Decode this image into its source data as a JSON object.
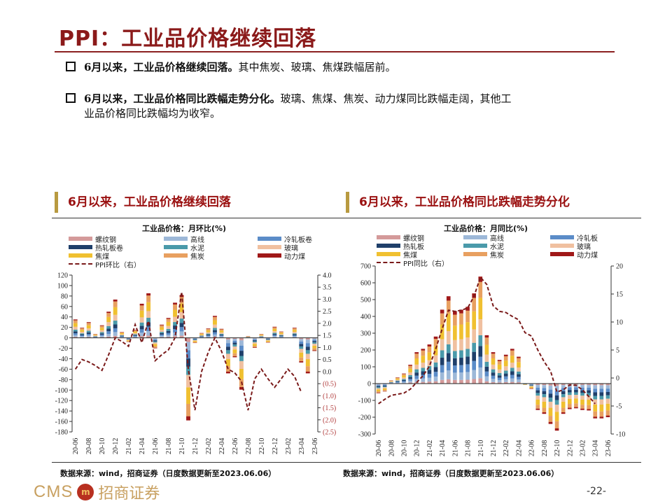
{
  "title": "PPI：工业品价格继续回落",
  "bullets": [
    {
      "bold": "6月以来，工业品价格继续回落。",
      "text": "其中焦炭、玻璃、焦煤跌幅居前。"
    },
    {
      "bold": "6月以来，工业品价格同比跌幅走势分化。",
      "text": "玻璃、焦煤、焦炭、动力煤同比跌幅走阔，其他工",
      "text2": "业品价格同比跌幅均为收窄。"
    }
  ],
  "sections": [
    "6月以来，工业品价格继续回落",
    "6月以来，工业品价格同比跌幅走势分化"
  ],
  "sources": [
    "数据来源：wind，招商证券（日度数据更新至2023.06.06）",
    "数据来源：wind，招商证券（日度数据更新至2023.06.06）"
  ],
  "logo": {
    "latin": "CMS",
    "seal": "招",
    "cn": "招商证券"
  },
  "page_number": "-22-",
  "chart_data": [
    {
      "type": "bar",
      "stacked": true,
      "title": "工业品价格：月环比(%)",
      "categories": [
        "20-06",
        "20-07",
        "20-08",
        "20-09",
        "20-10",
        "20-11",
        "20-12",
        "21-01",
        "21-02",
        "21-03",
        "21-04",
        "21-05",
        "21-06",
        "21-07",
        "21-08",
        "21-09",
        "21-10",
        "21-11",
        "21-12",
        "22-01",
        "22-02",
        "22-03",
        "22-04",
        "22-05",
        "22-06",
        "22-07",
        "22-08",
        "22-09",
        "22-10",
        "22-11",
        "22-12",
        "23-01",
        "23-02",
        "23-03",
        "23-04",
        "23-05",
        "23-06"
      ],
      "y_left": {
        "range": [
          -180,
          120
        ],
        "ticks": [
          120,
          100,
          80,
          60,
          40,
          20,
          0,
          -20,
          -40,
          -60,
          -80,
          -100,
          -120,
          -140,
          -160,
          -180
        ],
        "tick_labels": [
          "120",
          "100",
          "80",
          "60",
          "40",
          "20",
          "0",
          "-20",
          "-40",
          "-60",
          "-80",
          "-100",
          "-120",
          "-140",
          "-160",
          "-180"
        ]
      },
      "y_right": {
        "range": [
          -2.5,
          4.0
        ],
        "ticks": [
          4,
          3.5,
          3,
          2.5,
          2,
          1.5,
          1,
          0.5,
          0,
          -0.5,
          -1,
          -1.5,
          -2,
          -2.5
        ],
        "tick_labels": [
          "4.0",
          "3.5",
          "3.0",
          "2.5",
          "2.0",
          "1.5",
          "1.0",
          "0.5",
          "0.0",
          "(0.5)",
          "(1.0)",
          "(1.5)",
          "(2.0)",
          "(2.5)"
        ],
        "negative_label_color": "#b03a3a"
      },
      "series": [
        {
          "name": "螺纹钢",
          "color": "#d49a9a",
          "values": [
            1.8,
            1.0,
            1.5,
            0.4,
            1.2,
            2.5,
            3.7,
            0.6,
            -0.4,
            0.8,
            3.3,
            4.3,
            -1,
            1.3,
            1.9,
            3.4,
            4.1,
            -7.9,
            -0.5,
            0.5,
            0.9,
            2.1,
            0.9,
            -3.4,
            -1.9,
            -5,
            0.2,
            -1,
            0.4,
            -0.5,
            1.1,
            0.6,
            0,
            1,
            -2.4,
            -3.4,
            -1.3
          ]
        },
        {
          "name": "高线",
          "color": "#9db8d8",
          "values": [
            3.5,
            1.9,
            3,
            0.7,
            2.4,
            5,
            7.3,
            1.1,
            -0.8,
            1.5,
            6.5,
            8.5,
            -2,
            2.5,
            3.8,
            6.7,
            8.2,
            -15.8,
            -1,
            0.9,
            1.8,
            4.2,
            1.7,
            -6.8,
            -3.7,
            -9.9,
            0.3,
            -1.9,
            0.7,
            -0.9,
            2.1,
            1.2,
            0,
            1.9,
            -4.7,
            -6.8,
            -2.5
          ]
        },
        {
          "name": "冷轧板卷",
          "color": "#5b8cc8",
          "values": [
            3.5,
            1.9,
            3,
            0.7,
            2.4,
            5,
            7.3,
            1.1,
            -0.8,
            1.5,
            6.5,
            8.5,
            -2,
            2.5,
            3.8,
            6.7,
            8.2,
            -15.8,
            -1,
            0.9,
            1.8,
            4.2,
            1.7,
            -6.8,
            -3.7,
            -9.9,
            0.3,
            -1.9,
            0.7,
            -0.9,
            2.1,
            1.2,
            0,
            1.9,
            -4.7,
            -6.8,
            -2.5
          ]
        },
        {
          "name": "热轧板卷",
          "color": "#1f3f6a",
          "values": [
            3.5,
            1.9,
            3,
            0.7,
            2.4,
            5,
            7.3,
            1.1,
            -0.8,
            1.5,
            6.5,
            8.5,
            -2,
            2.5,
            3.8,
            6.7,
            8.2,
            -15.8,
            -1,
            0.9,
            1.8,
            4.2,
            1.7,
            -6.8,
            -3.7,
            -9.9,
            0.3,
            -1.9,
            0.7,
            -0.9,
            2.1,
            1.2,
            0,
            1.9,
            -4.7,
            -6.8,
            -2.5
          ]
        },
        {
          "name": "水泥",
          "color": "#4a9aaa",
          "values": [
            3.5,
            1.9,
            3,
            0.7,
            2.4,
            5,
            7.3,
            1.1,
            -0.8,
            1.5,
            6.5,
            8.5,
            -2,
            2.5,
            3.8,
            6.7,
            8.2,
            -15.8,
            -1,
            0.9,
            1.8,
            4.2,
            1.7,
            -6.8,
            -3.7,
            -9.9,
            0.3,
            -1.9,
            0.7,
            -0.9,
            2.1,
            1.2,
            0,
            1.9,
            -4.7,
            -6.8,
            -2.5
          ]
        },
        {
          "name": "玻璃",
          "color": "#f0c0a0",
          "values": [
            5.3,
            2.9,
            4.5,
            1.1,
            3.6,
            7.5,
            11,
            1.7,
            -1.2,
            2.3,
            9.8,
            12.8,
            -3,
            3.8,
            5.7,
            10.1,
            12.3,
            -23.7,
            -1.5,
            1.4,
            2.7,
            6.3,
            2.6,
            -10.2,
            -5.6,
            -14.9,
            0.5,
            -2.9,
            1.1,
            -1.4,
            3.2,
            1.8,
            0,
            2.9,
            -7.1,
            -10.2,
            -3.8
          ]
        },
        {
          "name": "焦煤",
          "color": "#f0c030",
          "values": [
            7,
            3.8,
            6,
            1.4,
            4.8,
            10,
            14.6,
            2.2,
            -1.6,
            3,
            13,
            17,
            -4,
            5,
            7.6,
            13.4,
            16.4,
            -31.6,
            -2,
            1.8,
            3.6,
            8.4,
            3.4,
            -13.6,
            -7.4,
            -19.8,
            0.6,
            -3.8,
            1.4,
            -1.8,
            4.2,
            2.4,
            0,
            3.8,
            -9.4,
            -13.6,
            -5
          ]
        },
        {
          "name": "焦炭",
          "color": "#e8a060",
          "values": [
            5.3,
            2.9,
            4.5,
            1.1,
            3.6,
            7.5,
            11,
            1.7,
            -1.2,
            2.3,
            9.8,
            12.8,
            -3,
            3.8,
            5.7,
            10.1,
            12.3,
            -23.7,
            -1.5,
            1.4,
            2.7,
            6.3,
            2.6,
            -10.2,
            -5.6,
            -14.9,
            0.5,
            -2.9,
            1.1,
            -1.4,
            3.2,
            1.8,
            0,
            2.9,
            -7.1,
            -10.2,
            -3.8
          ]
        },
        {
          "name": "动力煤",
          "color": "#a01818",
          "values": [
            1.8,
            1.0,
            1.5,
            0.4,
            1.2,
            2.5,
            3.7,
            0.6,
            -0.4,
            0.8,
            3.3,
            4.3,
            -1,
            1.3,
            1.9,
            3.4,
            4.1,
            -7.9,
            -0.5,
            0.5,
            0.9,
            2.1,
            0.9,
            -3.4,
            -1.9,
            -5,
            0.2,
            -1,
            0.4,
            -0.5,
            1.1,
            0.6,
            0,
            1,
            -2.4,
            -3.4,
            -1.3
          ]
        }
      ],
      "line": {
        "name": "PPI环比（右）",
        "axis": "right",
        "color": "#7a1a1a",
        "style": "dashed",
        "values": [
          0.1,
          0.5,
          0.4,
          0.25,
          0.05,
          0.7,
          1.4,
          1.25,
          1.05,
          1.95,
          1.2,
          2.1,
          0.45,
          0.7,
          0.9,
          1.4,
          3.3,
          0.1,
          -1.6,
          0.0,
          0.8,
          1.4,
          0.85,
          0.1,
          -0.05,
          -0.4,
          -1.6,
          -0.3,
          0.1,
          -0.3,
          -0.65,
          -0.3,
          0.1,
          -0.2,
          -0.85,
          null,
          null
        ]
      }
    },
    {
      "type": "bar",
      "stacked": true,
      "title": "工业品价格：月同比(%)",
      "categories": [
        "20-06",
        "20-07",
        "20-08",
        "20-09",
        "20-10",
        "20-11",
        "20-12",
        "21-01",
        "21-02",
        "21-03",
        "21-04",
        "21-05",
        "21-06",
        "21-07",
        "21-08",
        "21-09",
        "21-10",
        "21-11",
        "21-12",
        "22-01",
        "22-02",
        "22-03",
        "22-04",
        "22-05",
        "22-06",
        "22-07",
        "22-08",
        "22-09",
        "22-10",
        "22-11",
        "22-12",
        "23-01",
        "23-02",
        "23-03",
        "23-04",
        "23-05",
        "23-06"
      ],
      "y_left": {
        "range": [
          -300,
          700
        ],
        "ticks": [
          700,
          600,
          500,
          400,
          300,
          200,
          100,
          0,
          -100,
          -200,
          -300
        ],
        "tick_labels": [
          "700",
          "600",
          "500",
          "400",
          "300",
          "200",
          "100",
          "0",
          "-100",
          "-200",
          "-300"
        ]
      },
      "y_right": {
        "range": [
          -10,
          20
        ],
        "ticks": [
          20,
          15,
          10,
          5,
          0,
          -5,
          -10
        ],
        "tick_labels": [
          "20",
          "15",
          "10",
          "5",
          "0",
          "-5",
          "-10"
        ]
      },
      "series": [
        {
          "name": "螺纹钢",
          "color": "#d49a9a",
          "values": [
            -3,
            -2,
            1,
            2,
            3,
            6,
            9,
            10,
            12,
            14,
            22,
            26,
            22,
            22,
            23,
            27,
            32,
            14,
            9,
            7,
            9,
            10,
            8,
            0,
            -2,
            -8,
            -9,
            -12,
            -14,
            -9,
            -8,
            -7,
            -8,
            -8,
            -10,
            -10,
            -10
          ]
        },
        {
          "name": "高线",
          "color": "#9db8d8",
          "values": [
            -6,
            -5,
            2,
            4,
            6,
            11,
            19,
            21,
            23,
            28,
            44,
            52,
            43,
            44,
            46,
            54,
            64,
            29,
            19,
            14,
            17,
            21,
            16,
            -1,
            -3,
            -16,
            -18,
            -24,
            -28,
            -18,
            -15,
            -15,
            -16,
            -16,
            -21,
            -21,
            -20
          ]
        },
        {
          "name": "冷轧板",
          "color": "#5b8cc8",
          "values": [
            -6,
            -5,
            2,
            4,
            6,
            11,
            19,
            21,
            23,
            28,
            44,
            52,
            43,
            44,
            46,
            54,
            64,
            29,
            19,
            14,
            17,
            21,
            16,
            -1,
            -3,
            -16,
            -18,
            -24,
            -28,
            -18,
            -15,
            -15,
            -16,
            -16,
            -21,
            -21,
            -20
          ]
        },
        {
          "name": "热轧板",
          "color": "#1f3f6a",
          "values": [
            -6,
            -5,
            2,
            4,
            6,
            11,
            19,
            21,
            23,
            28,
            44,
            52,
            43,
            44,
            46,
            54,
            64,
            29,
            19,
            14,
            17,
            21,
            16,
            -1,
            -3,
            -16,
            -18,
            -24,
            -28,
            -18,
            -15,
            -15,
            -16,
            -16,
            -21,
            -21,
            -20
          ]
        },
        {
          "name": "水泥",
          "color": "#4a9aaa",
          "values": [
            -6,
            -5,
            2,
            4,
            6,
            11,
            19,
            21,
            23,
            28,
            44,
            52,
            43,
            44,
            46,
            54,
            64,
            29,
            19,
            14,
            17,
            21,
            16,
            -1,
            -3,
            -16,
            -18,
            -24,
            -28,
            -18,
            -15,
            -15,
            -16,
            -16,
            -21,
            -21,
            -20
          ]
        },
        {
          "name": "玻璃",
          "color": "#f0c0a0",
          "values": [
            -8,
            -7,
            3,
            5,
            9,
            17,
            28,
            31,
            35,
            42,
            66,
            78,
            65,
            66,
            68,
            80,
            95,
            43,
            28,
            21,
            26,
            31,
            24,
            -1,
            -5,
            -23,
            -27,
            -36,
            -42,
            -27,
            -23,
            -22,
            -23,
            -24,
            -31,
            -31,
            -30
          ]
        },
        {
          "name": "焦煤",
          "color": "#f0c030",
          "values": [
            -11,
            -9,
            3,
            7,
            12,
            22,
            37,
            41,
            47,
            56,
            88,
            104,
            86,
            88,
            91,
            107,
            127,
            58,
            37,
            29,
            34,
            41,
            32,
            -2,
            -6,
            -31,
            -36,
            -48,
            -56,
            -36,
            -30,
            -29,
            -31,
            -32,
            -41,
            -41,
            -40
          ]
        },
        {
          "name": "焦炭",
          "color": "#e8a060",
          "values": [
            -8,
            -7,
            3,
            5,
            9,
            17,
            28,
            31,
            35,
            42,
            66,
            78,
            65,
            66,
            68,
            80,
            95,
            43,
            28,
            21,
            26,
            31,
            24,
            -1,
            -5,
            -23,
            -27,
            -36,
            -42,
            -27,
            -23,
            -22,
            -23,
            -24,
            -31,
            -31,
            -30
          ]
        },
        {
          "name": "动力煤",
          "color": "#a01818",
          "values": [
            -3,
            -2,
            1,
            2,
            3,
            6,
            9,
            10,
            12,
            14,
            22,
            26,
            22,
            22,
            23,
            27,
            32,
            14,
            9,
            7,
            9,
            10,
            8,
            0,
            -2,
            -8,
            -9,
            -12,
            -14,
            -9,
            -8,
            -7,
            -8,
            -8,
            -10,
            -10,
            -10
          ]
        }
      ],
      "line": {
        "name": "PPI同比（右）",
        "axis": "right",
        "color": "#7a1a1a",
        "style": "dashed",
        "values": [
          -4.6,
          -3.8,
          -3.1,
          -2.9,
          -2.7,
          -2.0,
          -0.8,
          0.4,
          2.1,
          5.2,
          8.75,
          12.1,
          11.9,
          12.1,
          12.5,
          14.6,
          18.0,
          16.7,
          12.9,
          11.9,
          11.7,
          11.0,
          10.4,
          8.1,
          7.5,
          5.0,
          2.9,
          1.25,
          -2.5,
          -2.1,
          -1.25,
          -1.3,
          -2.1,
          -3.3,
          -4.6,
          null,
          null
        ]
      }
    }
  ]
}
